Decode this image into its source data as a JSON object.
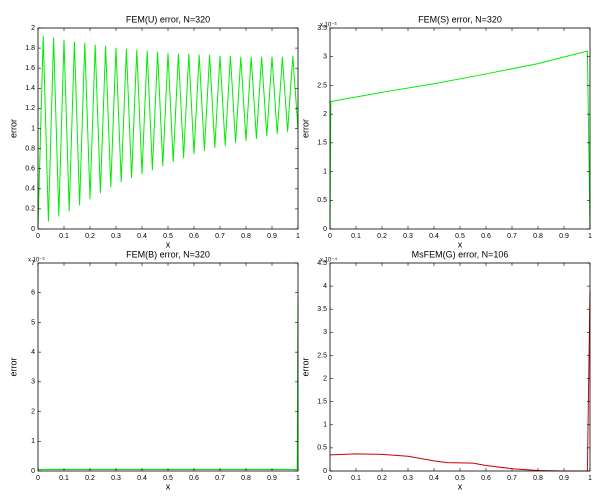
{
  "chart_data": [
    {
      "type": "line",
      "title": "FEM(U) error, N=320",
      "xlabel": "x",
      "ylabel": "error",
      "x": [
        0,
        0.02,
        0.04,
        0.06,
        0.08,
        0.1,
        0.12,
        0.14,
        0.16,
        0.18,
        0.2,
        0.22,
        0.24,
        0.26,
        0.28,
        0.3,
        0.32,
        0.34,
        0.36,
        0.38,
        0.4,
        0.42,
        0.44,
        0.46,
        0.48,
        0.5,
        0.52,
        0.54,
        0.56,
        0.58,
        0.6,
        0.62,
        0.64,
        0.66,
        0.68,
        0.7,
        0.72,
        0.74,
        0.76,
        0.78,
        0.8,
        0.82,
        0.84,
        0.86,
        0.88,
        0.9,
        0.92,
        0.94,
        0.96,
        0.98,
        1
      ],
      "series": [
        {
          "color": "#00ee00",
          "values": [
            0.02,
            1.92,
            0.08,
            1.9,
            0.13,
            1.88,
            0.18,
            1.86,
            0.24,
            1.85,
            0.3,
            1.83,
            0.36,
            1.82,
            0.42,
            1.8,
            0.47,
            1.79,
            0.51,
            1.78,
            0.55,
            1.77,
            0.59,
            1.76,
            0.63,
            1.75,
            0.67,
            1.74,
            0.71,
            1.74,
            0.75,
            1.73,
            0.78,
            1.73,
            0.81,
            1.72,
            0.83,
            1.72,
            0.86,
            1.71,
            0.88,
            1.71,
            0.9,
            1.71,
            0.93,
            1.71,
            0.95,
            1.71,
            0.97,
            1.72,
            1.0
          ]
        }
      ],
      "xlim": [
        0,
        1
      ],
      "xticks": [
        0,
        0.1,
        0.2,
        0.3,
        0.4,
        0.5,
        0.6,
        0.7,
        0.8,
        0.9,
        1
      ],
      "ylim": [
        0,
        2
      ],
      "yticks": [
        0,
        0.2,
        0.4,
        0.6,
        0.8,
        1,
        1.2,
        1.4,
        1.6,
        1.8,
        2
      ]
    },
    {
      "type": "line",
      "title": "FEM(S) error, N=320",
      "xlabel": "x",
      "ylabel": "error",
      "y_scale_label": "x 10⁻³",
      "x": [
        0,
        0.003,
        0.2,
        0.4,
        0.6,
        0.8,
        0.99,
        1
      ],
      "series": [
        {
          "color": "#00ee00",
          "values": [
            0,
            2.22,
            2.38,
            2.53,
            2.7,
            2.88,
            3.1,
            0
          ]
        }
      ],
      "xlim": [
        0,
        1
      ],
      "xticks": [
        0,
        0.1,
        0.2,
        0.3,
        0.4,
        0.5,
        0.6,
        0.7,
        0.8,
        0.9,
        1
      ],
      "ylim": [
        0,
        3.5
      ],
      "yticks": [
        0,
        0.5,
        1,
        1.5,
        2,
        2.5,
        3,
        3.5
      ]
    },
    {
      "type": "line",
      "title": "FEM(B) error, N=320",
      "xlabel": "x",
      "ylabel": "error",
      "y_scale_label": "x 10⁻³",
      "x": [
        0,
        0.99,
        0.997,
        1
      ],
      "series": [
        {
          "color": "#00ee00",
          "values": [
            0.05,
            0.05,
            0.05,
            5.9
          ]
        }
      ],
      "xlim": [
        0,
        1
      ],
      "xticks": [
        0,
        0.1,
        0.2,
        0.3,
        0.4,
        0.5,
        0.6,
        0.7,
        0.8,
        0.9,
        1
      ],
      "ylim": [
        0,
        7
      ],
      "yticks": [
        0,
        1,
        2,
        3,
        4,
        5,
        6,
        7
      ]
    },
    {
      "type": "line",
      "title": "MsFEM(G) error, N=106",
      "xlabel": "x",
      "ylabel": "error",
      "y_scale_label": "x 10⁻⁴",
      "x": [
        0,
        0.1,
        0.2,
        0.3,
        0.4,
        0.45,
        0.55,
        0.6,
        0.7,
        0.8,
        0.9,
        0.99,
        1
      ],
      "series": [
        {
          "color": "#cc0000",
          "values": [
            0.35,
            0.37,
            0.36,
            0.32,
            0.22,
            0.18,
            0.17,
            0.12,
            0.05,
            0.01,
            0,
            0,
            3.9
          ]
        }
      ],
      "xlim": [
        0,
        1
      ],
      "xticks": [
        0,
        0.1,
        0.2,
        0.3,
        0.4,
        0.5,
        0.6,
        0.7,
        0.8,
        0.9,
        1
      ],
      "ylim": [
        0,
        4.5
      ],
      "yticks": [
        0,
        0.5,
        1,
        1.5,
        2,
        2.5,
        3,
        3.5,
        4,
        4.5
      ]
    }
  ]
}
